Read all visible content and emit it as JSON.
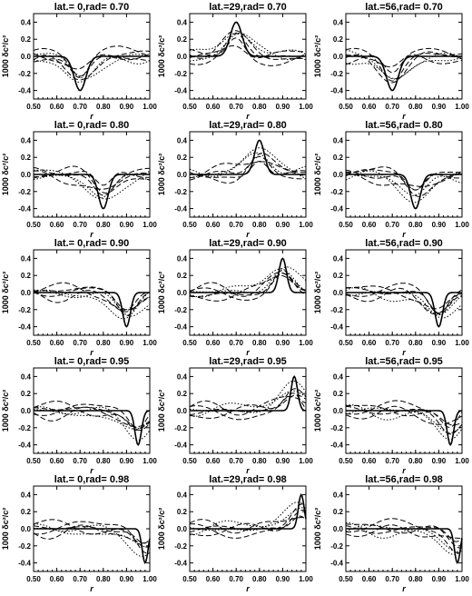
{
  "figure": {
    "xlabel": "r",
    "ylabel": "1000 δc²/c²"
  },
  "chart_data": [
    {
      "type": "line",
      "title": "lat.= 0,rad= 0.70",
      "xlabel": "r",
      "ylabel": "1000 δc²/c²",
      "xlim": [
        0.5,
        1.0
      ],
      "ylim": [
        -0.5,
        0.5
      ],
      "xticks": [
        "0.50",
        "0.60",
        "0.70",
        "0.80",
        "0.90",
        "1.00"
      ],
      "yticks": [
        "-0.4",
        "-0.2",
        "0.0",
        "0.2",
        "0.4"
      ],
      "lat": 0,
      "rad": 0.7,
      "sign": -1
    },
    {
      "type": "line",
      "title": "lat.=29,rad= 0.70",
      "xlabel": "r",
      "ylabel": "1000 δc²/c²",
      "xlim": [
        0.5,
        1.0
      ],
      "ylim": [
        -0.5,
        0.5
      ],
      "xticks": [
        "0.50",
        "0.60",
        "0.70",
        "0.80",
        "0.90",
        "1.00"
      ],
      "yticks": [
        "-0.4",
        "-0.2",
        "0.0",
        "0.2",
        "0.4"
      ],
      "lat": 29,
      "rad": 0.7,
      "sign": 1
    },
    {
      "type": "line",
      "title": "lat.=56,rad= 0.70",
      "xlabel": "r",
      "ylabel": "1000 δc²/c²",
      "xlim": [
        0.5,
        1.0
      ],
      "ylim": [
        -0.5,
        0.5
      ],
      "xticks": [
        "0.50",
        "0.60",
        "0.70",
        "0.80",
        "0.90",
        "1.00"
      ],
      "yticks": [
        "-0.4",
        "-0.2",
        "0.0",
        "0.2",
        "0.4"
      ],
      "lat": 56,
      "rad": 0.7,
      "sign": -1
    },
    {
      "type": "line",
      "title": "lat.= 0,rad= 0.80",
      "xlabel": "r",
      "ylabel": "1000 δc²/c²",
      "xlim": [
        0.5,
        1.0
      ],
      "ylim": [
        -0.5,
        0.5
      ],
      "xticks": [
        "0.50",
        "0.60",
        "0.70",
        "0.80",
        "0.90",
        "1.00"
      ],
      "yticks": [
        "-0.4",
        "-0.2",
        "0.0",
        "0.2",
        "0.4"
      ],
      "lat": 0,
      "rad": 0.8,
      "sign": -1
    },
    {
      "type": "line",
      "title": "lat.=29,rad= 0.80",
      "xlabel": "r",
      "ylabel": "1000 δc²/c²",
      "xlim": [
        0.5,
        1.0
      ],
      "ylim": [
        -0.5,
        0.5
      ],
      "xticks": [
        "0.50",
        "0.60",
        "0.70",
        "0.80",
        "0.90",
        "1.00"
      ],
      "yticks": [
        "-0.4",
        "-0.2",
        "0.0",
        "0.2",
        "0.4"
      ],
      "lat": 29,
      "rad": 0.8,
      "sign": 1
    },
    {
      "type": "line",
      "title": "lat.=56,rad= 0.80",
      "xlabel": "r",
      "ylabel": "1000 δc²/c²",
      "xlim": [
        0.5,
        1.0
      ],
      "ylim": [
        -0.5,
        0.5
      ],
      "xticks": [
        "0.50",
        "0.60",
        "0.70",
        "0.80",
        "0.90",
        "1.00"
      ],
      "yticks": [
        "-0.4",
        "-0.2",
        "0.0",
        "0.2",
        "0.4"
      ],
      "lat": 56,
      "rad": 0.8,
      "sign": -1
    },
    {
      "type": "line",
      "title": "lat.= 0,rad= 0.90",
      "xlabel": "r",
      "ylabel": "1000 δc²/c²",
      "xlim": [
        0.5,
        1.0
      ],
      "ylim": [
        -0.5,
        0.5
      ],
      "xticks": [
        "0.50",
        "0.60",
        "0.70",
        "0.80",
        "0.90",
        "1.00"
      ],
      "yticks": [
        "-0.4",
        "-0.2",
        "0.0",
        "0.2",
        "0.4"
      ],
      "lat": 0,
      "rad": 0.9,
      "sign": -1
    },
    {
      "type": "line",
      "title": "lat.=29,rad= 0.90",
      "xlabel": "r",
      "ylabel": "1000 δc²/c²",
      "xlim": [
        0.5,
        1.0
      ],
      "ylim": [
        -0.5,
        0.5
      ],
      "xticks": [
        "0.50",
        "0.60",
        "0.70",
        "0.80",
        "0.90",
        "1.00"
      ],
      "yticks": [
        "-0.4",
        "-0.2",
        "0.0",
        "0.2",
        "0.4"
      ],
      "lat": 29,
      "rad": 0.9,
      "sign": 1
    },
    {
      "type": "line",
      "title": "lat.=56,rad= 0.90",
      "xlabel": "r",
      "ylabel": "1000 δc²/c²",
      "xlim": [
        0.5,
        1.0
      ],
      "ylim": [
        -0.5,
        0.5
      ],
      "xticks": [
        "0.50",
        "0.60",
        "0.70",
        "0.80",
        "0.90",
        "1.00"
      ],
      "yticks": [
        "-0.4",
        "-0.2",
        "0.0",
        "0.2",
        "0.4"
      ],
      "lat": 56,
      "rad": 0.9,
      "sign": -1
    },
    {
      "type": "line",
      "title": "lat.= 0,rad= 0.95",
      "xlabel": "r",
      "ylabel": "1000 δc²/c²",
      "xlim": [
        0.5,
        1.0
      ],
      "ylim": [
        -0.5,
        0.5
      ],
      "xticks": [
        "0.50",
        "0.60",
        "0.70",
        "0.80",
        "0.90",
        "1.00"
      ],
      "yticks": [
        "-0.4",
        "-0.2",
        "0.0",
        "0.2",
        "0.4"
      ],
      "lat": 0,
      "rad": 0.95,
      "sign": -1
    },
    {
      "type": "line",
      "title": "lat.=29,rad= 0.95",
      "xlabel": "r",
      "ylabel": "1000 δc²/c²",
      "xlim": [
        0.5,
        1.0
      ],
      "ylim": [
        -0.5,
        0.5
      ],
      "xticks": [
        "0.50",
        "0.60",
        "0.70",
        "0.80",
        "0.90",
        "1.00"
      ],
      "yticks": [
        "-0.4",
        "-0.2",
        "0.0",
        "0.2",
        "0.4"
      ],
      "lat": 29,
      "rad": 0.95,
      "sign": 1
    },
    {
      "type": "line",
      "title": "lat.=56,rad= 0.95",
      "xlabel": "r",
      "ylabel": "1000 δc²/c²",
      "xlim": [
        0.5,
        1.0
      ],
      "ylim": [
        -0.5,
        0.5
      ],
      "xticks": [
        "0.50",
        "0.60",
        "0.70",
        "0.80",
        "0.90",
        "1.00"
      ],
      "yticks": [
        "-0.4",
        "-0.2",
        "0.0",
        "0.2",
        "0.4"
      ],
      "lat": 56,
      "rad": 0.95,
      "sign": -1
    },
    {
      "type": "line",
      "title": "lat.= 0,rad= 0.98",
      "xlabel": "r",
      "ylabel": "1000 δc²/c²",
      "xlim": [
        0.5,
        1.0
      ],
      "ylim": [
        -0.5,
        0.5
      ],
      "xticks": [
        "0.50",
        "0.60",
        "0.70",
        "0.80",
        "0.90",
        "1.00"
      ],
      "yticks": [
        "-0.4",
        "-0.2",
        "0.0",
        "0.2",
        "0.4"
      ],
      "lat": 0,
      "rad": 0.98,
      "sign": -1
    },
    {
      "type": "line",
      "title": "lat.=29,rad= 0.98",
      "xlabel": "r",
      "ylabel": "1000 δc²/c²",
      "xlim": [
        0.5,
        1.0
      ],
      "ylim": [
        -0.5,
        0.5
      ],
      "xticks": [
        "0.50",
        "0.60",
        "0.70",
        "0.80",
        "0.90",
        "1.00"
      ],
      "yticks": [
        "-0.4",
        "-0.2",
        "0.0",
        "0.2",
        "0.4"
      ],
      "lat": 29,
      "rad": 0.98,
      "sign": 1
    },
    {
      "type": "line",
      "title": "lat.=56,rad= 0.98",
      "xlabel": "r",
      "ylabel": "1000 δc²/c²",
      "xlim": [
        0.5,
        1.0
      ],
      "ylim": [
        -0.5,
        0.5
      ],
      "xticks": [
        "0.50",
        "0.60",
        "0.70",
        "0.80",
        "0.90",
        "1.00"
      ],
      "yticks": [
        "-0.4",
        "-0.2",
        "0.0",
        "0.2",
        "0.4"
      ],
      "lat": 56,
      "rad": 0.98,
      "sign": -1
    }
  ]
}
